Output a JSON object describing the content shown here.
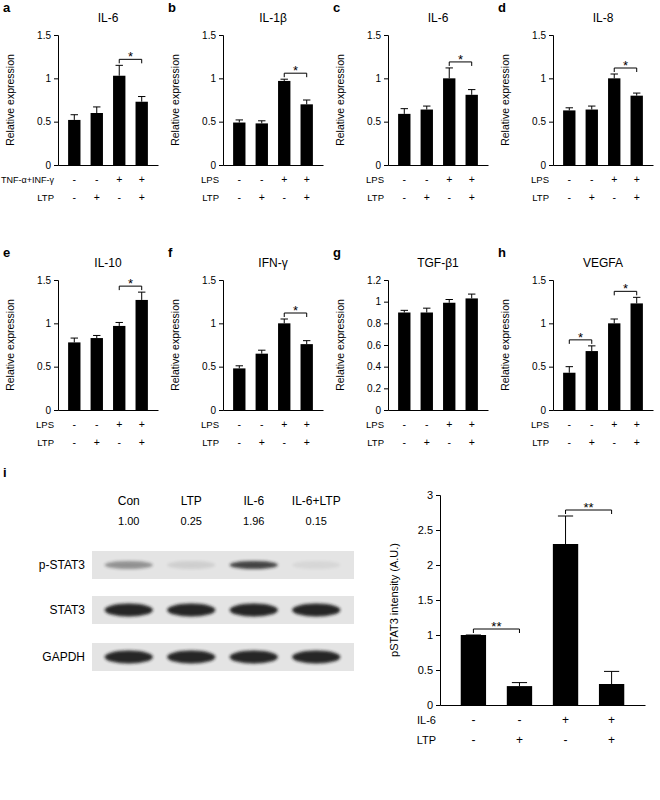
{
  "chart_data": [
    {
      "type": "bar",
      "panel": "a",
      "title": "IL-6",
      "ylabel": "Relative expression",
      "categories": [
        null,
        null,
        null,
        null
      ],
      "values": [
        0.52,
        0.6,
        1.03,
        0.73
      ],
      "errors": [
        0.06,
        0.07,
        0.12,
        0.06
      ],
      "color": "#000000",
      "ylim": [
        0,
        1.5
      ],
      "yticks": [
        0,
        0.5,
        1,
        1.5
      ],
      "conditions": [
        {
          "label": "TNF-α+INF-γ",
          "signs": [
            "-",
            "-",
            "+",
            "+"
          ]
        },
        {
          "label": "LTP",
          "signs": [
            "-",
            "+",
            "-",
            "+"
          ]
        }
      ],
      "significance": [
        {
          "from": 2,
          "to": 3,
          "label": "*"
        }
      ]
    },
    {
      "type": "bar",
      "panel": "b",
      "title": "IL-1β",
      "ylabel": "Relative expression",
      "categories": [
        null,
        null,
        null,
        null
      ],
      "values": [
        0.49,
        0.48,
        0.97,
        0.7
      ],
      "errors": [
        0.03,
        0.03,
        0.02,
        0.05
      ],
      "color": "#000000",
      "ylim": [
        0,
        1.5
      ],
      "yticks": [
        0,
        0.5,
        1,
        1.5
      ],
      "conditions": [
        {
          "label": "LPS",
          "signs": [
            "-",
            "-",
            "+",
            "+"
          ]
        },
        {
          "label": "LTP",
          "signs": [
            "-",
            "+",
            "-",
            "+"
          ]
        }
      ],
      "significance": [
        {
          "from": 2,
          "to": 3,
          "label": "*"
        }
      ]
    },
    {
      "type": "bar",
      "panel": "c",
      "title": "IL-6",
      "ylabel": "Relative expression",
      "categories": [
        null,
        null,
        null,
        null
      ],
      "values": [
        0.59,
        0.64,
        1.0,
        0.81
      ],
      "errors": [
        0.06,
        0.04,
        0.12,
        0.06
      ],
      "color": "#000000",
      "ylim": [
        0,
        1.5
      ],
      "yticks": [
        0,
        0.5,
        1,
        1.5
      ],
      "conditions": [
        {
          "label": "LPS",
          "signs": [
            "-",
            "-",
            "+",
            "+"
          ]
        },
        {
          "label": "LTP",
          "signs": [
            "-",
            "+",
            "-",
            "+"
          ]
        }
      ],
      "significance": [
        {
          "from": 2,
          "to": 3,
          "label": "*"
        }
      ]
    },
    {
      "type": "bar",
      "panel": "d",
      "title": "IL-8",
      "ylabel": "Relative expression",
      "categories": [
        null,
        null,
        null,
        null
      ],
      "values": [
        0.63,
        0.64,
        1.0,
        0.8
      ],
      "errors": [
        0.03,
        0.04,
        0.05,
        0.03
      ],
      "color": "#000000",
      "ylim": [
        0,
        1.5
      ],
      "yticks": [
        0,
        0.5,
        1,
        1.5
      ],
      "conditions": [
        {
          "label": "LPS",
          "signs": [
            "-",
            "-",
            "+",
            "+"
          ]
        },
        {
          "label": "LTP",
          "signs": [
            "-",
            "+",
            "-",
            "+"
          ]
        }
      ],
      "significance": [
        {
          "from": 2,
          "to": 3,
          "label": "*"
        }
      ]
    },
    {
      "type": "bar",
      "panel": "e",
      "title": "IL-10",
      "ylabel": "Relative expression",
      "categories": [
        null,
        null,
        null,
        null
      ],
      "values": [
        0.78,
        0.83,
        0.97,
        1.27
      ],
      "errors": [
        0.05,
        0.03,
        0.04,
        0.09
      ],
      "color": "#000000",
      "ylim": [
        0,
        1.5
      ],
      "yticks": [
        0,
        0.5,
        1,
        1.5
      ],
      "conditions": [
        {
          "label": "LPS",
          "signs": [
            "-",
            "-",
            "+",
            "+"
          ]
        },
        {
          "label": "LTP",
          "signs": [
            "-",
            "+",
            "-",
            "+"
          ]
        }
      ],
      "significance": [
        {
          "from": 2,
          "to": 3,
          "label": "*"
        }
      ]
    },
    {
      "type": "bar",
      "panel": "f",
      "title": "IFN-γ",
      "ylabel": "Relative expression",
      "categories": [
        null,
        null,
        null,
        null
      ],
      "values": [
        0.48,
        0.65,
        1.0,
        0.76
      ],
      "errors": [
        0.03,
        0.04,
        0.05,
        0.04
      ],
      "color": "#000000",
      "ylim": [
        0,
        1.5
      ],
      "yticks": [
        0,
        0.5,
        1,
        1.5
      ],
      "conditions": [
        {
          "label": "LPS",
          "signs": [
            "-",
            "-",
            "+",
            "+"
          ]
        },
        {
          "label": "LTP",
          "signs": [
            "-",
            "+",
            "-",
            "+"
          ]
        }
      ],
      "significance": [
        {
          "from": 2,
          "to": 3,
          "label": "*"
        }
      ]
    },
    {
      "type": "bar",
      "panel": "g",
      "title": "TGF-β1",
      "ylabel": "Relative expression",
      "categories": [
        null,
        null,
        null,
        null
      ],
      "values": [
        0.9,
        0.9,
        0.99,
        1.03
      ],
      "errors": [
        0.02,
        0.04,
        0.03,
        0.04
      ],
      "color": "#000000",
      "ylim": [
        0,
        1.2
      ],
      "yticks": [
        0,
        0.2,
        0.4,
        0.6,
        0.8,
        1,
        1.2
      ],
      "conditions": [
        {
          "label": "LPS",
          "signs": [
            "-",
            "-",
            "+",
            "+"
          ]
        },
        {
          "label": "LTP",
          "signs": [
            "-",
            "+",
            "-",
            "+"
          ]
        }
      ],
      "significance": []
    },
    {
      "type": "bar",
      "panel": "h",
      "title": "VEGFA",
      "ylabel": "Relative expression",
      "categories": [
        null,
        null,
        null,
        null
      ],
      "values": [
        0.43,
        0.68,
        1.0,
        1.23
      ],
      "errors": [
        0.07,
        0.06,
        0.05,
        0.07
      ],
      "color": "#000000",
      "ylim": [
        0,
        1.5
      ],
      "yticks": [
        0,
        0.5,
        1,
        1.5
      ],
      "conditions": [
        {
          "label": "LPS",
          "signs": [
            "-",
            "-",
            "+",
            "+"
          ]
        },
        {
          "label": "LTP",
          "signs": [
            "-",
            "+",
            "-",
            "+"
          ]
        }
      ],
      "significance": [
        {
          "from": 0,
          "to": 1,
          "label": "*"
        },
        {
          "from": 2,
          "to": 3,
          "label": "*"
        }
      ]
    },
    {
      "type": "blot",
      "panel": "i",
      "lanes": [
        "Con",
        "LTP",
        "IL-6",
        "IL-6+LTP"
      ],
      "quantification": [
        {
          "value": 1,
          "label": "1.00"
        },
        {
          "value": 0.25,
          "label": "0.25"
        },
        {
          "value": 1.96,
          "label": "1.96"
        },
        {
          "value": 0.15,
          "label": "0.15"
        }
      ],
      "rows": [
        "p-STAT3",
        "STAT3",
        "GAPDH"
      ]
    },
    {
      "type": "bar",
      "ylabel": "pSTAT3 intensity (A.U.)",
      "categories": [
        null,
        null,
        null,
        null
      ],
      "values": [
        1.0,
        0.27,
        2.3,
        0.3
      ],
      "errors": [
        0,
        0.05,
        0.4,
        0.18
      ],
      "color": "#000000",
      "ylim": [
        0,
        3
      ],
      "yticks": [
        0,
        0.5,
        1,
        1.5,
        2,
        2.5,
        3
      ],
      "conditions": [
        {
          "label": "IL-6",
          "signs": [
            "-",
            "-",
            "+",
            "+"
          ]
        },
        {
          "label": "LTP",
          "signs": [
            "-",
            "+",
            "-",
            "+"
          ]
        }
      ],
      "significance": [
        {
          "from": 0,
          "to": 1,
          "label": "**"
        },
        {
          "from": 2,
          "to": 3,
          "label": "**"
        }
      ]
    }
  ]
}
